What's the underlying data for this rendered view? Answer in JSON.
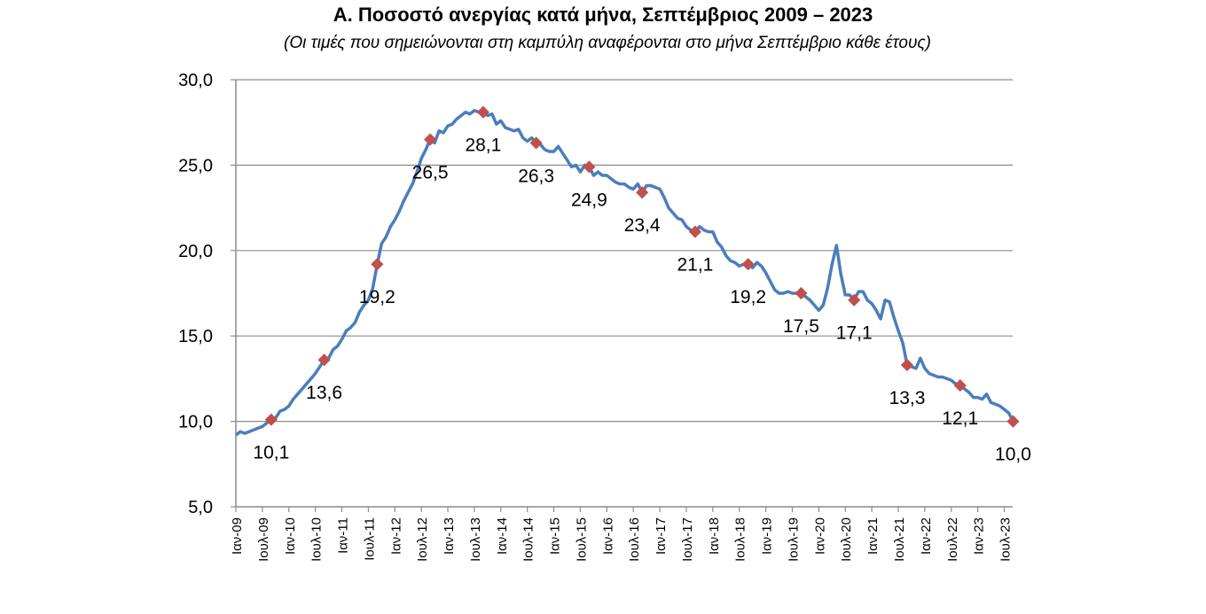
{
  "chart_data": {
    "type": "line",
    "title": "Α. Ποσοστό ανεργίας κατά μήνα, Σεπτέμβριος 2009 – 2023",
    "subtitle": "(Οι τιμές που σημειώνονται στη καμπύλη αναφέρονται στο μήνα Σεπτέμβριο κάθε έτους)",
    "xlabel": "",
    "ylabel": "",
    "ylim": [
      5,
      30
    ],
    "y_ticks": [
      "5,0",
      "10,0",
      "15,0",
      "20,0",
      "25,0",
      "30,0"
    ],
    "x_tick_labels": [
      "Ιαν-09",
      "Ιουλ-09",
      "Ιαν-10",
      "Ιουλ-10",
      "Ιαν-11",
      "Ιουλ-11",
      "Ιαν-12",
      "Ιουλ-12",
      "Ιαν-13",
      "Ιουλ-13",
      "Ιαν-14",
      "Ιουλ-14",
      "Ιαν-15",
      "Ιουλ-15",
      "Ιαν-16",
      "Ιουλ-16",
      "Ιαν-17",
      "Ιουλ-17",
      "Ιαν-18",
      "Ιουλ-18",
      "Ιαν-19",
      "Ιουλ-19",
      "Ιαν-20",
      "Ιουλ-20",
      "Ιαν-21",
      "Ιουλ-21",
      "Ιαν-22",
      "Ιουλ-22",
      "Ιαν-23",
      "Ιουλ-23"
    ],
    "grid": true,
    "start": "2009-01",
    "frequency": "monthly",
    "series": [
      {
        "name": "Ποσοστό ανεργίας",
        "color": "#4a7ebb",
        "values": [
          9.2,
          9.4,
          9.3,
          9.4,
          9.5,
          9.6,
          9.7,
          9.9,
          10.1,
          10.2,
          10.6,
          10.7,
          10.9,
          11.3,
          11.6,
          11.9,
          12.2,
          12.5,
          12.8,
          13.2,
          13.6,
          13.7,
          14.2,
          14.4,
          14.8,
          15.3,
          15.5,
          15.8,
          16.4,
          16.8,
          17.1,
          17.8,
          19.2,
          20.4,
          20.8,
          21.4,
          21.8,
          22.3,
          22.9,
          23.4,
          23.9,
          24.6,
          25.4,
          25.9,
          26.5,
          26.3,
          27.0,
          26.9,
          27.3,
          27.4,
          27.7,
          27.9,
          28.1,
          28.0,
          28.2,
          28.1,
          28.1,
          27.9,
          28.0,
          27.4,
          27.6,
          27.2,
          27.1,
          27.0,
          27.1,
          26.6,
          26.4,
          26.6,
          26.3,
          26.2,
          25.9,
          25.8,
          25.8,
          26.1,
          25.7,
          25.3,
          24.9,
          25.0,
          24.6,
          25.0,
          24.9,
          24.4,
          24.6,
          24.4,
          24.4,
          24.2,
          24.0,
          23.9,
          23.9,
          23.7,
          23.6,
          23.9,
          23.4,
          23.8,
          23.8,
          23.7,
          23.6,
          23.1,
          22.5,
          22.2,
          21.9,
          21.8,
          21.4,
          21.2,
          21.1,
          21.4,
          21.2,
          21.1,
          21.1,
          20.5,
          20.2,
          19.7,
          19.4,
          19.3,
          19.1,
          19.2,
          19.2,
          19.0,
          19.3,
          19.1,
          18.7,
          18.2,
          17.7,
          17.5,
          17.5,
          17.6,
          17.5,
          17.5,
          17.5,
          17.3,
          17.1,
          16.8,
          16.5,
          16.8,
          17.8,
          19.2,
          20.3,
          18.6,
          17.4,
          17.4,
          17.1,
          17.6,
          17.6,
          17.1,
          16.9,
          16.5,
          16.0,
          17.1,
          17.0,
          16.1,
          15.3,
          14.6,
          13.3,
          13.2,
          13.1,
          13.7,
          13.1,
          12.8,
          12.7,
          12.6,
          12.6,
          12.5,
          12.4,
          12.2,
          12.1,
          11.9,
          11.7,
          11.4,
          11.4,
          11.3,
          11.6,
          11.1,
          11.0,
          10.9,
          10.7,
          10.5,
          10.0
        ]
      }
    ],
    "september_markers": {
      "color": "#c0504d",
      "points": [
        {
          "year": 2009,
          "value": 10.1,
          "label": "10,1"
        },
        {
          "year": 2010,
          "value": 13.6,
          "label": "13,6"
        },
        {
          "year": 2011,
          "value": 19.2,
          "label": "19,2"
        },
        {
          "year": 2012,
          "value": 26.5,
          "label": "26,5"
        },
        {
          "year": 2013,
          "value": 28.1,
          "label": "28,1"
        },
        {
          "year": 2014,
          "value": 26.3,
          "label": "26,3"
        },
        {
          "year": 2015,
          "value": 24.9,
          "label": "24,9"
        },
        {
          "year": 2016,
          "value": 23.4,
          "label": "23,4"
        },
        {
          "year": 2017,
          "value": 21.1,
          "label": "21,1"
        },
        {
          "year": 2018,
          "value": 19.2,
          "label": "19,2"
        },
        {
          "year": 2019,
          "value": 17.5,
          "label": "17,5"
        },
        {
          "year": 2020,
          "value": 17.1,
          "label": "17,1"
        },
        {
          "year": 2021,
          "value": 13.3,
          "label": "13,3"
        },
        {
          "year": 2022,
          "value": 12.1,
          "label": "12,1"
        },
        {
          "year": 2023,
          "value": 10.0,
          "label": "10,0"
        }
      ]
    }
  }
}
